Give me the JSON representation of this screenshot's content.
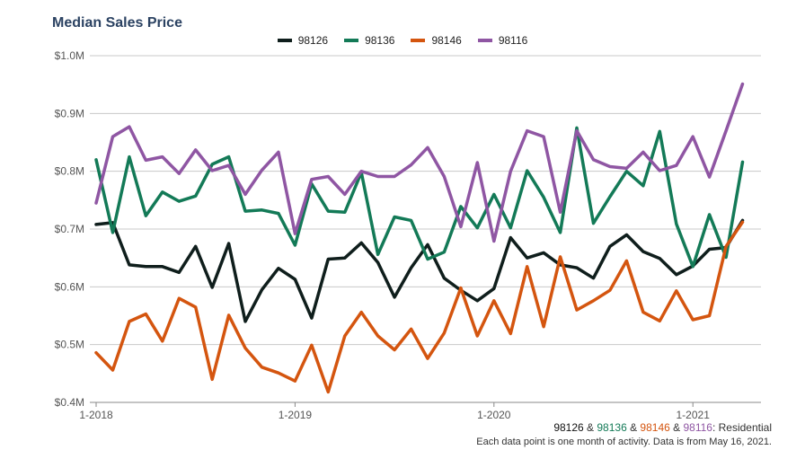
{
  "chart_data": {
    "type": "line",
    "title": "Median Sales Price",
    "x_tick_labels": [
      "1-2018",
      "1-2019",
      "1-2020",
      "1-2021"
    ],
    "y_tick_labels": [
      "$0.4M",
      "$0.5M",
      "$0.6M",
      "$0.7M",
      "$0.8M",
      "$0.9M",
      "$1.0M"
    ],
    "ylim": [
      0.4,
      1.0
    ],
    "x_months": 40,
    "series": [
      {
        "name": "98126",
        "color": "#0f1e1c",
        "values": [
          0.708,
          0.711,
          0.638,
          0.635,
          0.635,
          0.625,
          0.67,
          0.599,
          0.675,
          0.54,
          0.595,
          0.632,
          0.613,
          0.546,
          0.648,
          0.65,
          0.676,
          0.642,
          0.582,
          0.633,
          0.673,
          0.615,
          0.594,
          0.576,
          0.597,
          0.685,
          0.65,
          0.659,
          0.638,
          0.633,
          0.615,
          0.67,
          0.69,
          0.661,
          0.649,
          0.621,
          0.636,
          0.665,
          0.668,
          0.715
        ]
      },
      {
        "name": "98136",
        "color": "#137a57",
        "values": [
          0.82,
          0.694,
          0.825,
          0.723,
          0.764,
          0.748,
          0.757,
          0.812,
          0.825,
          0.731,
          0.733,
          0.727,
          0.672,
          0.778,
          0.731,
          0.729,
          0.798,
          0.656,
          0.721,
          0.715,
          0.648,
          0.66,
          0.739,
          0.702,
          0.76,
          0.702,
          0.801,
          0.755,
          0.694,
          0.875,
          0.71,
          0.756,
          0.8,
          0.775,
          0.869,
          0.709,
          0.635,
          0.725,
          0.651,
          0.816
        ]
      },
      {
        "name": "98146",
        "color": "#d4550f",
        "values": [
          0.486,
          0.456,
          0.54,
          0.553,
          0.506,
          0.58,
          0.565,
          0.44,
          0.551,
          0.494,
          0.461,
          0.451,
          0.437,
          0.499,
          0.418,
          0.515,
          0.556,
          0.515,
          0.491,
          0.527,
          0.476,
          0.52,
          0.598,
          0.515,
          0.576,
          0.519,
          0.635,
          0.531,
          0.652,
          0.56,
          0.576,
          0.594,
          0.645,
          0.556,
          0.541,
          0.593,
          0.543,
          0.55,
          0.67,
          0.712
        ]
      },
      {
        "name": "98116",
        "color": "#8f56a3",
        "values": [
          0.745,
          0.86,
          0.877,
          0.819,
          0.825,
          0.796,
          0.837,
          0.801,
          0.81,
          0.76,
          0.802,
          0.833,
          0.692,
          0.786,
          0.791,
          0.76,
          0.8,
          0.791,
          0.791,
          0.811,
          0.841,
          0.791,
          0.704,
          0.815,
          0.679,
          0.8,
          0.87,
          0.86,
          0.729,
          0.87,
          0.82,
          0.808,
          0.805,
          0.833,
          0.801,
          0.81,
          0.86,
          0.79,
          0.87,
          0.951
        ]
      }
    ],
    "footer": {
      "series_names": [
        "98126",
        "98136",
        "98146",
        "98116"
      ],
      "separator": " & ",
      "suffix": ": Residential",
      "note": "Each data point is one month of activity. Data is from May 16, 2021."
    }
  }
}
